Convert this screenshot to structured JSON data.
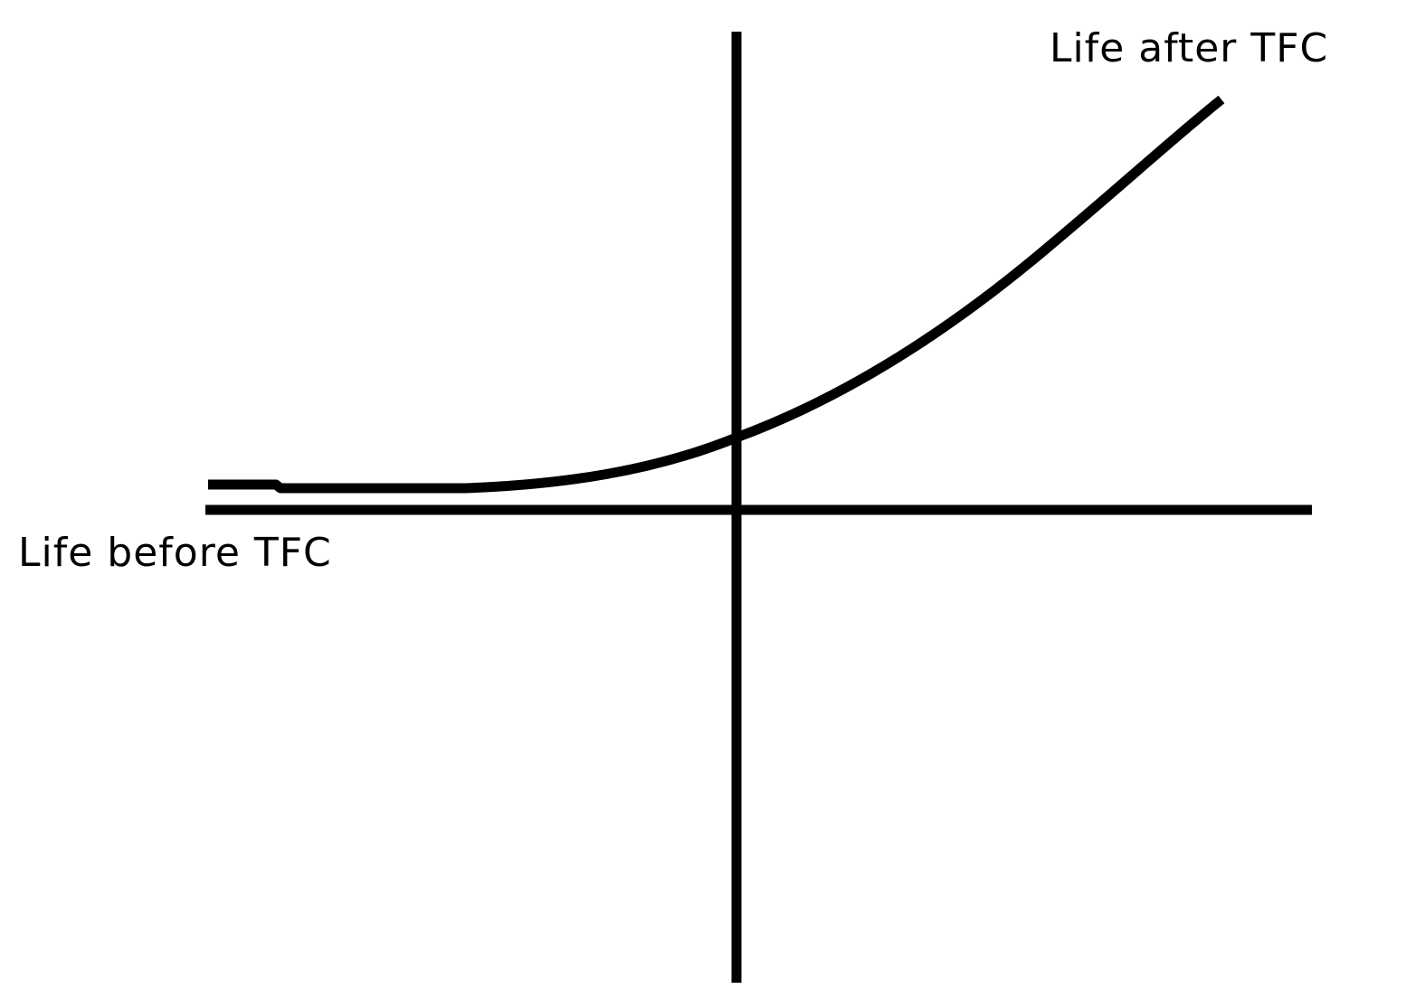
{
  "labels": {
    "after": "Life after TFC",
    "before": "Life before TFC"
  },
  "colors": {
    "ink": "#000000",
    "background": "#ffffff"
  }
}
